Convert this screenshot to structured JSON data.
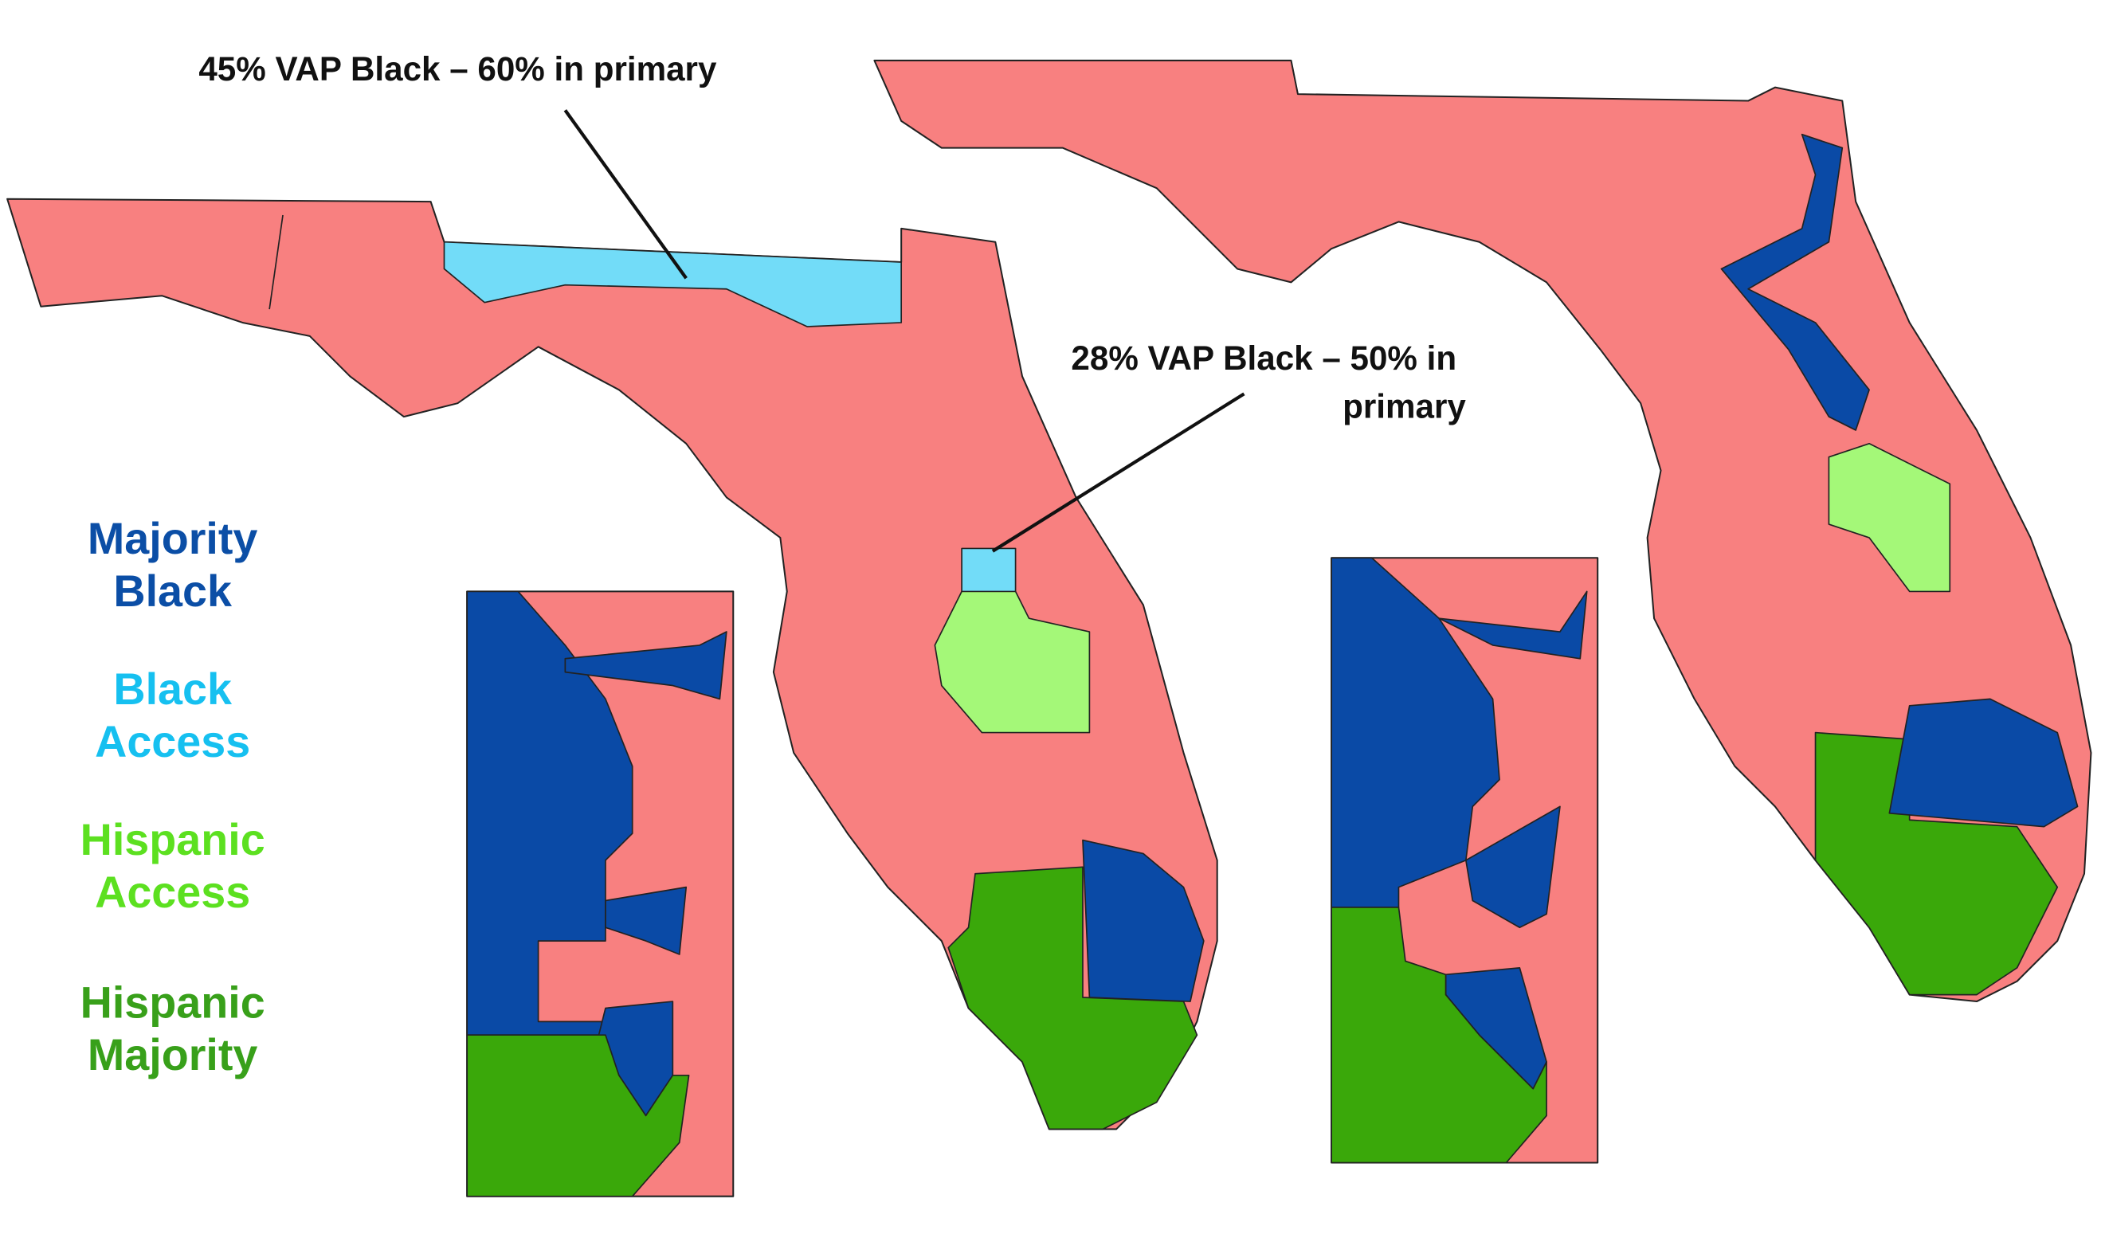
{
  "annotations": [
    {
      "lines": [
        "45% VAP Black – 60% in primary"
      ]
    },
    {
      "lines": [
        "28% VAP Black – 50% in",
        "primary"
      ]
    }
  ],
  "legend": [
    {
      "label": [
        "Majority",
        "Black"
      ],
      "color": "#0b4ea6"
    },
    {
      "label": [
        "Black",
        "Access"
      ],
      "color": "#16c0f0"
    },
    {
      "label": [
        "Hispanic",
        "Access"
      ],
      "color": "#5ce020"
    },
    {
      "label": [
        "Hispanic",
        "Majority"
      ],
      "color": "#38a01a"
    }
  ],
  "fills": {
    "Majority Black": "#0a4aa6",
    "Black Access": "#72dcf8",
    "Hispanic Access": "#a4f878",
    "Hispanic Majority": "#3aa80a"
  }
}
